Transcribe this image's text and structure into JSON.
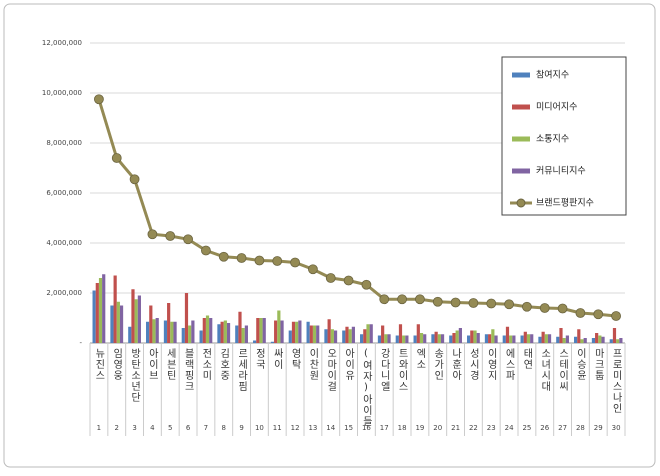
{
  "chart_data": {
    "type": "bar",
    "categories": [
      "뉴진스",
      "임영웅",
      "방탄소년단",
      "아이브",
      "세븐틴",
      "블랙핑크",
      "전소미",
      "김호중",
      "르세라핌",
      "정국",
      "싸이",
      "영탁",
      "이찬원",
      "오마이걸",
      "아이유",
      "(여자)아이들",
      "강다니엘",
      "트와이스",
      "엑소",
      "송가인",
      "나훈아",
      "성시경",
      "이영지",
      "에스파",
      "태연",
      "소녀시대",
      "스테이씨",
      "이승윤",
      "마크툽",
      "프로미스나인"
    ],
    "ranks": [
      1,
      2,
      3,
      4,
      5,
      6,
      7,
      8,
      9,
      10,
      11,
      12,
      13,
      14,
      15,
      16,
      17,
      18,
      19,
      20,
      21,
      22,
      23,
      24,
      25,
      26,
      27,
      28,
      29,
      30
    ],
    "series": [
      {
        "name": "참여지수",
        "color": "#4f81bd",
        "values": [
          2100000,
          1500000,
          650000,
          850000,
          900000,
          600000,
          500000,
          750000,
          700000,
          100000,
          50000,
          500000,
          850000,
          550000,
          500000,
          350000,
          300000,
          300000,
          300000,
          350000,
          300000,
          300000,
          350000,
          300000,
          300000,
          250000,
          250000,
          250000,
          200000,
          150000
        ]
      },
      {
        "name": "미디어지수",
        "color": "#c0504d",
        "values": [
          2400000,
          2700000,
          2150000,
          1500000,
          1600000,
          2000000,
          1000000,
          850000,
          1250000,
          1000000,
          900000,
          850000,
          700000,
          950000,
          650000,
          550000,
          700000,
          750000,
          750000,
          450000,
          400000,
          500000,
          350000,
          650000,
          450000,
          450000,
          600000,
          550000,
          400000,
          600000
        ]
      },
      {
        "name": "소통지수",
        "color": "#9bbb59",
        "values": [
          2600000,
          1650000,
          1750000,
          950000,
          850000,
          700000,
          1100000,
          900000,
          600000,
          1000000,
          1300000,
          850000,
          700000,
          550000,
          550000,
          750000,
          350000,
          300000,
          400000,
          350000,
          500000,
          500000,
          550000,
          300000,
          350000,
          350000,
          200000,
          150000,
          300000,
          150000
        ]
      },
      {
        "name": "커뮤니티지수",
        "color": "#8064a2",
        "values": [
          2750000,
          1500000,
          1900000,
          1000000,
          850000,
          900000,
          1000000,
          800000,
          700000,
          1000000,
          900000,
          900000,
          700000,
          500000,
          650000,
          750000,
          350000,
          300000,
          350000,
          350000,
          600000,
          400000,
          300000,
          300000,
          350000,
          350000,
          300000,
          200000,
          250000,
          200000
        ]
      },
      {
        "name": "브랜드평판지수",
        "type": "line",
        "color": "#948a54",
        "values": [
          9750000,
          7400000,
          6550000,
          4350000,
          4280000,
          4150000,
          3700000,
          3450000,
          3400000,
          3300000,
          3280000,
          3220000,
          2950000,
          2600000,
          2500000,
          2330000,
          1750000,
          1750000,
          1750000,
          1650000,
          1620000,
          1600000,
          1580000,
          1550000,
          1450000,
          1400000,
          1380000,
          1200000,
          1150000,
          1080000
        ]
      }
    ],
    "ylim": [
      0,
      12000000
    ],
    "yticks": [
      {
        "value": 0,
        "label": "-"
      },
      {
        "value": 2000000,
        "label": "2,000,000"
      },
      {
        "value": 4000000,
        "label": "4,000,000"
      },
      {
        "value": 6000000,
        "label": "6,000,000"
      },
      {
        "value": 8000000,
        "label": "8,000,000"
      },
      {
        "value": 10000000,
        "label": "10,000,000"
      },
      {
        "value": 12000000,
        "label": "12,000,000"
      }
    ],
    "grid": true,
    "legend": "upper right"
  }
}
